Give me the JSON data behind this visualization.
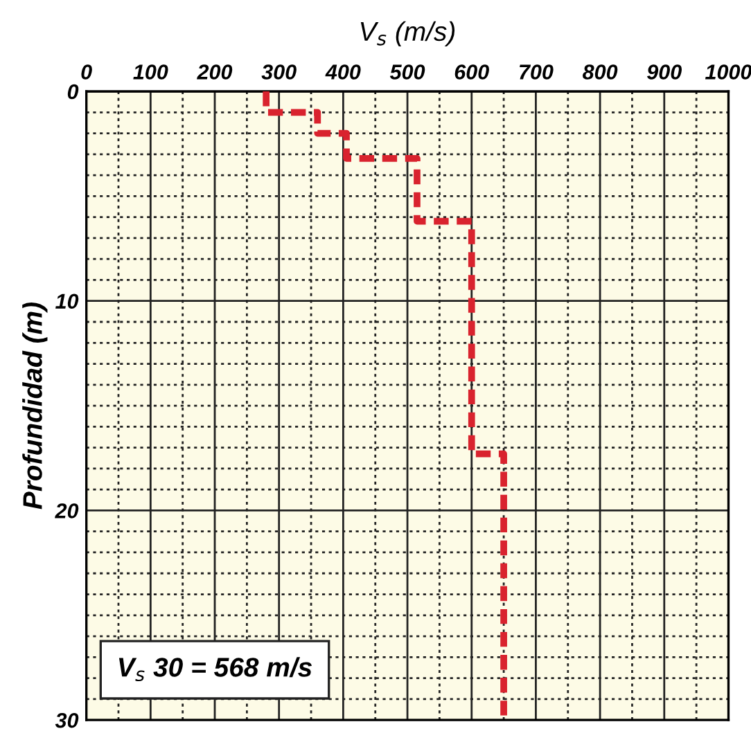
{
  "chart_data": {
    "type": "line",
    "xlabel": "V$_{s}$ (m/s)",
    "ylabel": "Profundidad (m)",
    "x": [
      280,
      280,
      360,
      360,
      405,
      405,
      515,
      515,
      600,
      600,
      650,
      650
    ],
    "series": [
      {
        "color": "#d9232e",
        "values": [
          0,
          1,
          1,
          2,
          2,
          3.2,
          3.2,
          6.2,
          6.2,
          17.3,
          17.3,
          30
        ]
      }
    ],
    "xlim": [
      0,
      1000
    ],
    "xticks": [
      0,
      100,
      200,
      300,
      400,
      500,
      600,
      700,
      800,
      900,
      1000
    ],
    "ylim": [
      30,
      0
    ],
    "yticks": [
      0,
      10,
      20,
      30
    ],
    "grid": true,
    "line_style": "dashed",
    "marker": "none",
    "annotations": [
      "V$_{s}$ 30 = 568 m/s"
    ]
  }
}
